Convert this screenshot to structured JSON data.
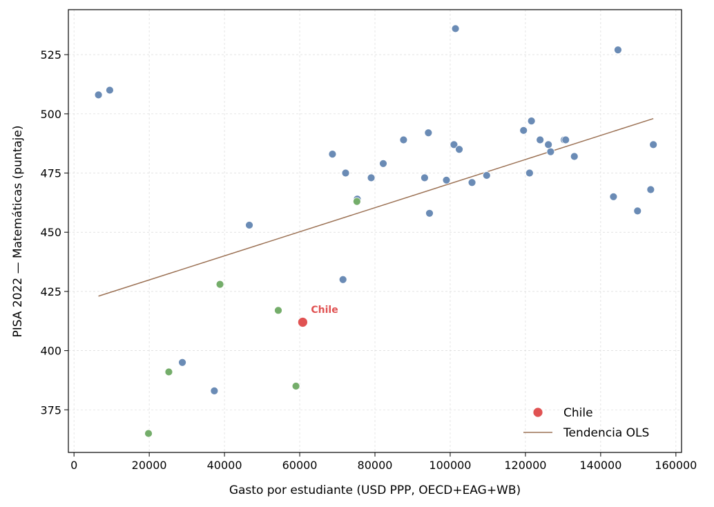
{
  "chart_data": {
    "type": "scatter",
    "xlabel": "Gasto por estudiante (USD PPP, OECD+EAG+WB)",
    "ylabel": "PISA 2022 — Matemáticas (puntaje)",
    "xlim": [
      -1500,
      161500
    ],
    "ylim": [
      357,
      544
    ],
    "xticks": [
      0,
      20000,
      40000,
      60000,
      80000,
      100000,
      120000,
      140000,
      160000
    ],
    "yticks": [
      375,
      400,
      425,
      450,
      475,
      500,
      525
    ],
    "grid": true,
    "legend_position": "lower-right",
    "colors": {
      "oecd": "#6a8bb5",
      "latam": "#74ad6a",
      "chile": "#e05252",
      "trend": "#9b7154",
      "grid": "#d9d9d9"
    },
    "series": [
      {
        "points": [
          [
            6500,
            508
          ],
          [
            9500,
            510
          ],
          [
            28800,
            395
          ],
          [
            37300,
            383
          ],
          [
            46600,
            453
          ],
          [
            68700,
            483
          ],
          [
            71500,
            430
          ],
          [
            72200,
            475
          ],
          [
            75300,
            464
          ],
          [
            79000,
            473
          ],
          [
            82200,
            479
          ],
          [
            87600,
            489
          ],
          [
            93200,
            473
          ],
          [
            94200,
            492
          ],
          [
            94500,
            458
          ],
          [
            99000,
            472
          ],
          [
            101000,
            487
          ],
          [
            101400,
            536
          ],
          [
            102400,
            485
          ],
          [
            105800,
            471
          ],
          [
            109700,
            474
          ],
          [
            119500,
            493
          ],
          [
            121100,
            475
          ],
          [
            121600,
            497
          ],
          [
            123900,
            489
          ],
          [
            126100,
            487
          ],
          [
            126700,
            484
          ],
          [
            130300,
            489
          ],
          [
            130700,
            489
          ],
          [
            133000,
            482
          ],
          [
            143400,
            465
          ],
          [
            144600,
            527
          ],
          [
            149800,
            459
          ],
          [
            153300,
            468
          ],
          [
            154000,
            487
          ]
        ]
      },
      {
        "points": [
          [
            19800,
            365
          ],
          [
            25200,
            391
          ],
          [
            38800,
            428
          ],
          [
            54300,
            417
          ],
          [
            59000,
            385
          ],
          [
            75200,
            463
          ]
        ]
      },
      {
        "name": "Chile",
        "points": [
          [
            60800,
            412
          ]
        ]
      }
    ],
    "trend": {
      "name": "Tendencia OLS",
      "x": [
        6500,
        154000
      ],
      "y": [
        423,
        498
      ]
    },
    "annotations": [
      {
        "text": "Chile",
        "x": 63000,
        "y": 416
      }
    ],
    "legend": [
      {
        "label": "Chile",
        "marker": "point"
      },
      {
        "label": "Tendencia OLS",
        "marker": "line"
      }
    ]
  }
}
